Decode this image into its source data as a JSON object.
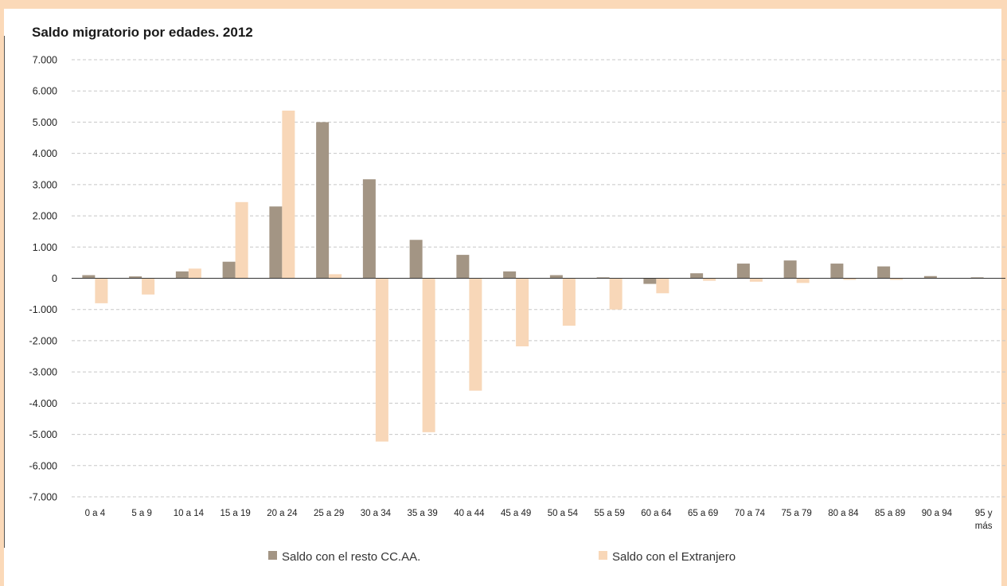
{
  "chart_data": {
    "type": "bar",
    "title": "Saldo migratorio por edades. 2012",
    "xlabel": "",
    "ylabel": "",
    "ylim": [
      -7000,
      7000
    ],
    "y_ticks": [
      "7.000",
      "6.000",
      "5.000",
      "4.000",
      "3.000",
      "2.000",
      "1.000",
      "0",
      "-1.000",
      "-2.000",
      "-3.000",
      "-4.000",
      "-5.000",
      "-6.000",
      "-7.000"
    ],
    "grid": true,
    "legend_position": "bottom",
    "categories": [
      [
        "0 a 4"
      ],
      [
        "5 a 9"
      ],
      [
        "10 a 14"
      ],
      [
        "15 a 19"
      ],
      [
        "20 a 24"
      ],
      [
        "25 a 29"
      ],
      [
        "30 a 34"
      ],
      [
        "35 a 39"
      ],
      [
        "40 a 44"
      ],
      [
        "45 a 49"
      ],
      [
        "50 a 54"
      ],
      [
        "55 a 59"
      ],
      [
        "60 a 64"
      ],
      [
        "65 a 69"
      ],
      [
        "70 a 74"
      ],
      [
        "75 a 79"
      ],
      [
        "80 a 84"
      ],
      [
        "85 a 89"
      ],
      [
        "90 a 94"
      ],
      [
        "95 y",
        "más"
      ]
    ],
    "series": [
      {
        "name": "Saldo con el resto CC.AA.",
        "color": "#a39584",
        "values": [
          100,
          60,
          220,
          530,
          2300,
          5000,
          3170,
          1230,
          750,
          220,
          100,
          30,
          -180,
          160,
          470,
          570,
          470,
          380,
          70,
          30
        ]
      },
      {
        "name": "Saldo con el Extranjero",
        "color": "#f8d7b8",
        "values": [
          -800,
          -520,
          310,
          2440,
          5370,
          130,
          -5230,
          -4930,
          -3600,
          -2180,
          -1520,
          -1000,
          -480,
          -80,
          -110,
          -150,
          -50,
          -50,
          0,
          0
        ]
      }
    ]
  }
}
